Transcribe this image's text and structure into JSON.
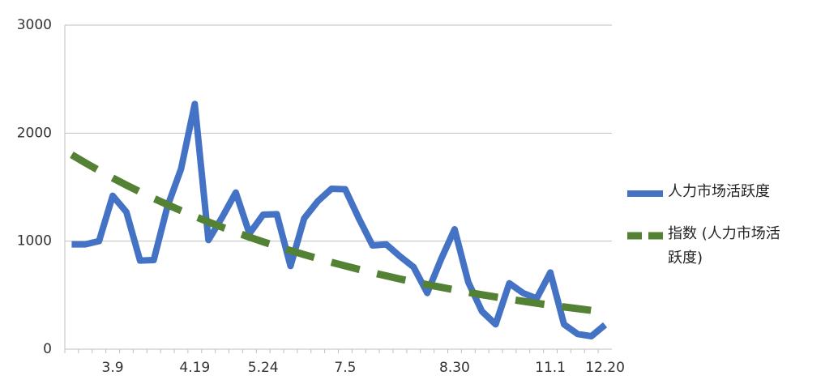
{
  "chart_data": {
    "type": "line",
    "categories": [
      null,
      null,
      null,
      "3.9",
      null,
      null,
      null,
      null,
      null,
      "4.19",
      null,
      null,
      null,
      null,
      "5.24",
      null,
      null,
      null,
      null,
      null,
      "7.5",
      null,
      null,
      null,
      null,
      null,
      null,
      null,
      "8.30",
      null,
      null,
      null,
      null,
      null,
      null,
      "11.1",
      null,
      null,
      null,
      "12.20"
    ],
    "series": [
      {
        "name": "人力市场活跃度",
        "color": "#4472c4",
        "values": [
          970,
          970,
          1000,
          1420,
          1270,
          820,
          825,
          1320,
          1670,
          2270,
          1010,
          1220,
          1450,
          1070,
          1245,
          1250,
          770,
          1210,
          1370,
          1485,
          1480,
          1210,
          960,
          970,
          860,
          760,
          520,
          830,
          1110,
          620,
          350,
          230,
          610,
          520,
          470,
          710,
          230,
          140,
          120,
          225
        ]
      },
      {
        "name": "指数 (人力市场活跃度)",
        "color": "#548235",
        "dashed": true,
        "values": [
          1800,
          1725,
          1654,
          1585,
          1519,
          1456,
          1396,
          1338,
          1282,
          1229,
          1178,
          1129,
          1082,
          1037,
          994,
          953,
          913,
          875,
          839,
          804,
          771,
          739,
          708,
          679,
          650,
          623,
          597,
          573,
          549,
          526,
          504,
          483,
          463,
          444,
          425,
          408,
          391,
          375,
          359,
          null
        ]
      }
    ],
    "ylim": [
      0,
      3000
    ],
    "yticks": [
      0,
      1000,
      2000,
      3000
    ],
    "grid": true
  }
}
